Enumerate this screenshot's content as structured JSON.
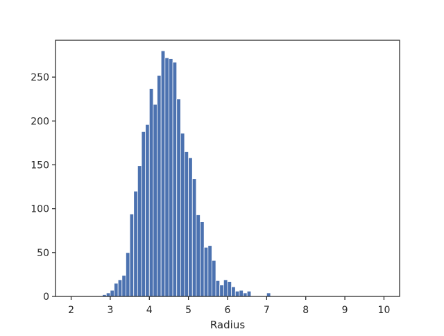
{
  "chart_data": {
    "type": "bar",
    "title": "",
    "xlabel": "Radius",
    "ylabel": "",
    "xlim": [
      2.0,
      10.0
    ],
    "ylim": [
      0,
      292
    ],
    "grid": false,
    "legend": "none",
    "bar_color": "#4c72b0",
    "bin_start": 2.0,
    "bin_width": 0.1,
    "counts": [
      0,
      0,
      0,
      0,
      0,
      0,
      0,
      0,
      2,
      4,
      7,
      15,
      19,
      24,
      50,
      94,
      120,
      149,
      188,
      196,
      237,
      219,
      252,
      280,
      272,
      271,
      267,
      225,
      186,
      165,
      158,
      134,
      93,
      85,
      56,
      58,
      41,
      18,
      13,
      19,
      17,
      11,
      6,
      7,
      4,
      6,
      0,
      0,
      0,
      0,
      4,
      0,
      0,
      0,
      0,
      0,
      0,
      0,
      0,
      0,
      0,
      0,
      0,
      0,
      0,
      0,
      0,
      0,
      0,
      0,
      0,
      0,
      0,
      0,
      0,
      0,
      0,
      0,
      0,
      0
    ],
    "x_ticks": [
      2,
      3,
      4,
      5,
      6,
      7,
      8,
      9,
      10
    ],
    "y_ticks": [
      0,
      50,
      100,
      150,
      200,
      250
    ]
  }
}
